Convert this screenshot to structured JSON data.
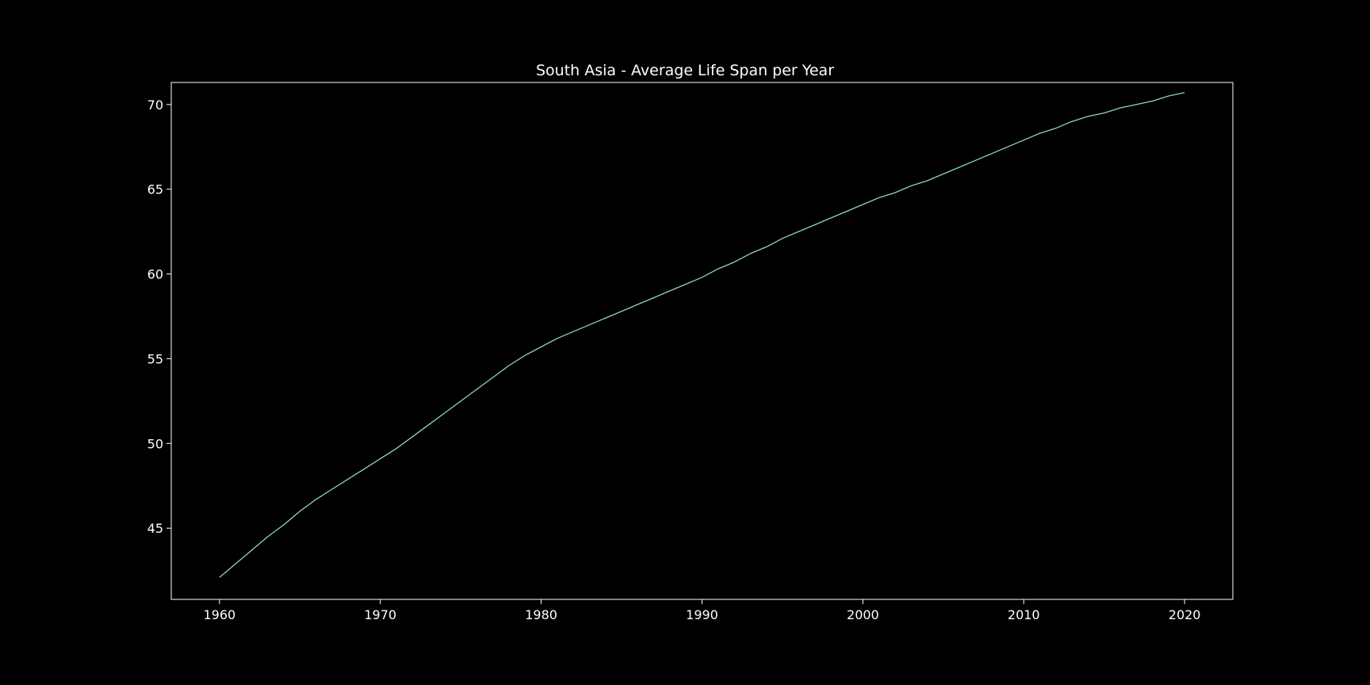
{
  "chart_data": {
    "type": "line",
    "title": "South Asia - Average Life Span per Year",
    "xlabel": "",
    "ylabel": "",
    "xlim": [
      1957,
      2023
    ],
    "ylim": [
      40.8,
      71.3
    ],
    "xticks": [
      1960,
      1970,
      1980,
      1990,
      2000,
      2010,
      2020
    ],
    "yticks": [
      45,
      50,
      55,
      60,
      65,
      70
    ],
    "grid": false,
    "colors": {
      "background": "#000000",
      "line": "#8dd3c7",
      "axes": "#ffffff",
      "text": "#ffffff"
    },
    "series": [
      {
        "x": [
          1960,
          1961,
          1962,
          1963,
          1964,
          1965,
          1966,
          1967,
          1968,
          1969,
          1970,
          1971,
          1972,
          1973,
          1974,
          1975,
          1976,
          1977,
          1978,
          1979,
          1980,
          1981,
          1982,
          1983,
          1984,
          1985,
          1986,
          1987,
          1988,
          1989,
          1990,
          1991,
          1992,
          1993,
          1994,
          1995,
          1996,
          1997,
          1998,
          1999,
          2000,
          2001,
          2002,
          2003,
          2004,
          2005,
          2006,
          2007,
          2008,
          2009,
          2010,
          2011,
          2012,
          2013,
          2014,
          2015,
          2016,
          2017,
          2018,
          2019,
          2020
        ],
        "values": [
          42.1,
          42.9,
          43.7,
          44.5,
          45.2,
          46.0,
          46.7,
          47.3,
          47.9,
          48.5,
          49.1,
          49.7,
          50.4,
          51.1,
          51.8,
          52.5,
          53.2,
          53.9,
          54.6,
          55.2,
          55.7,
          56.2,
          56.6,
          57.0,
          57.4,
          57.8,
          58.2,
          58.6,
          59.0,
          59.4,
          59.8,
          60.3,
          60.7,
          61.2,
          61.6,
          62.1,
          62.5,
          62.9,
          63.3,
          63.7,
          64.1,
          64.5,
          64.8,
          65.2,
          65.5,
          65.9,
          66.3,
          66.7,
          67.1,
          67.5,
          67.9,
          68.3,
          68.6,
          69.0,
          69.3,
          69.5,
          69.8,
          70.0,
          70.2,
          70.5,
          70.7
        ]
      }
    ]
  }
}
